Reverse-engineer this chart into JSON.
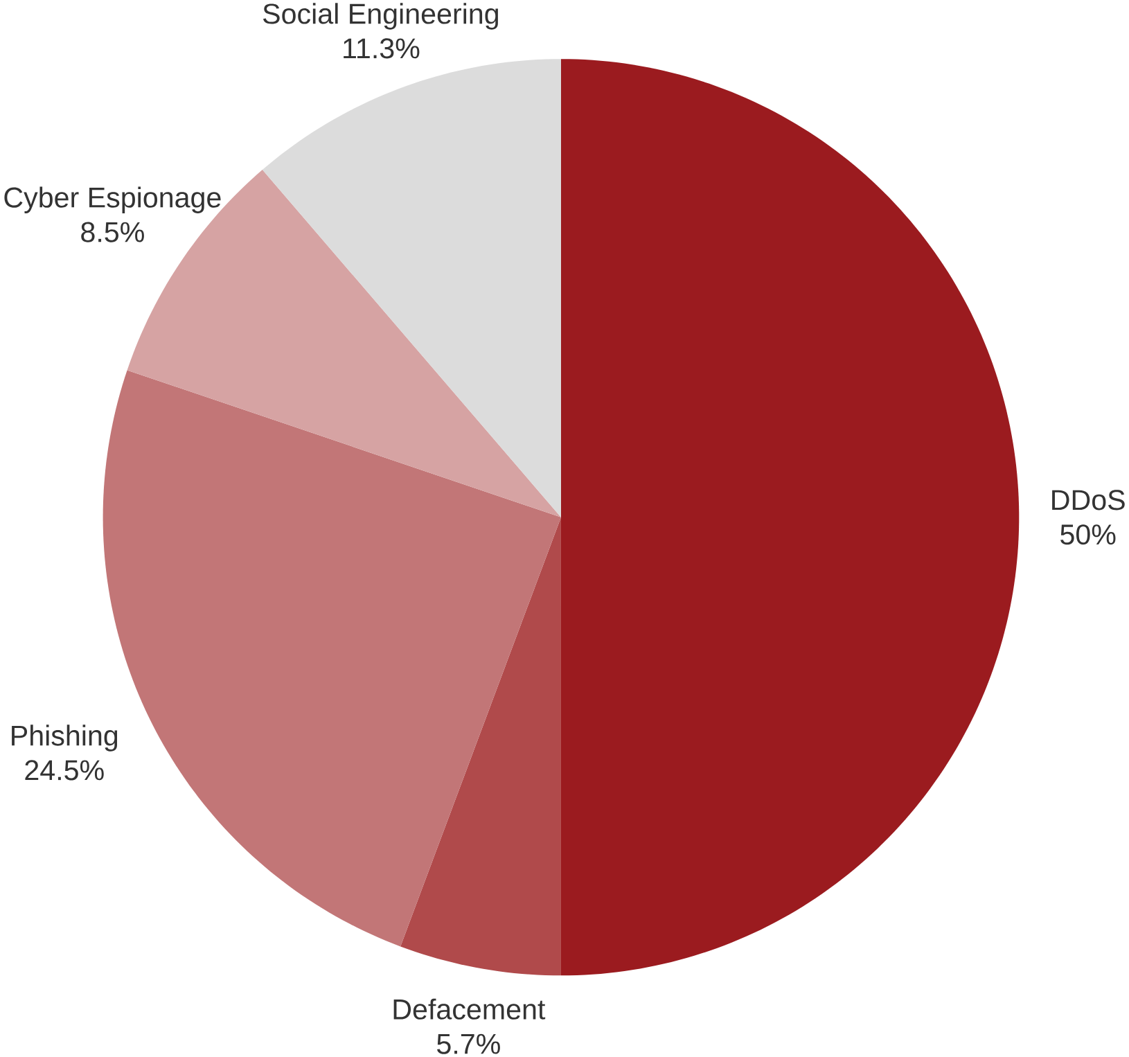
{
  "chart_data": {
    "type": "pie",
    "categories": [
      "DDoS",
      "Defacement",
      "Phishing",
      "Cyber Espionage",
      "Social Engineering"
    ],
    "values": [
      50,
      5.7,
      24.5,
      8.5,
      11.3
    ],
    "value_labels": [
      "50%",
      "5.7%",
      "24.5%",
      "8.5%",
      "11.3%"
    ],
    "colors": [
      "#9b1b1f",
      "#b04a4b",
      "#c27677",
      "#d6a3a3",
      "#dcdcdc"
    ]
  }
}
